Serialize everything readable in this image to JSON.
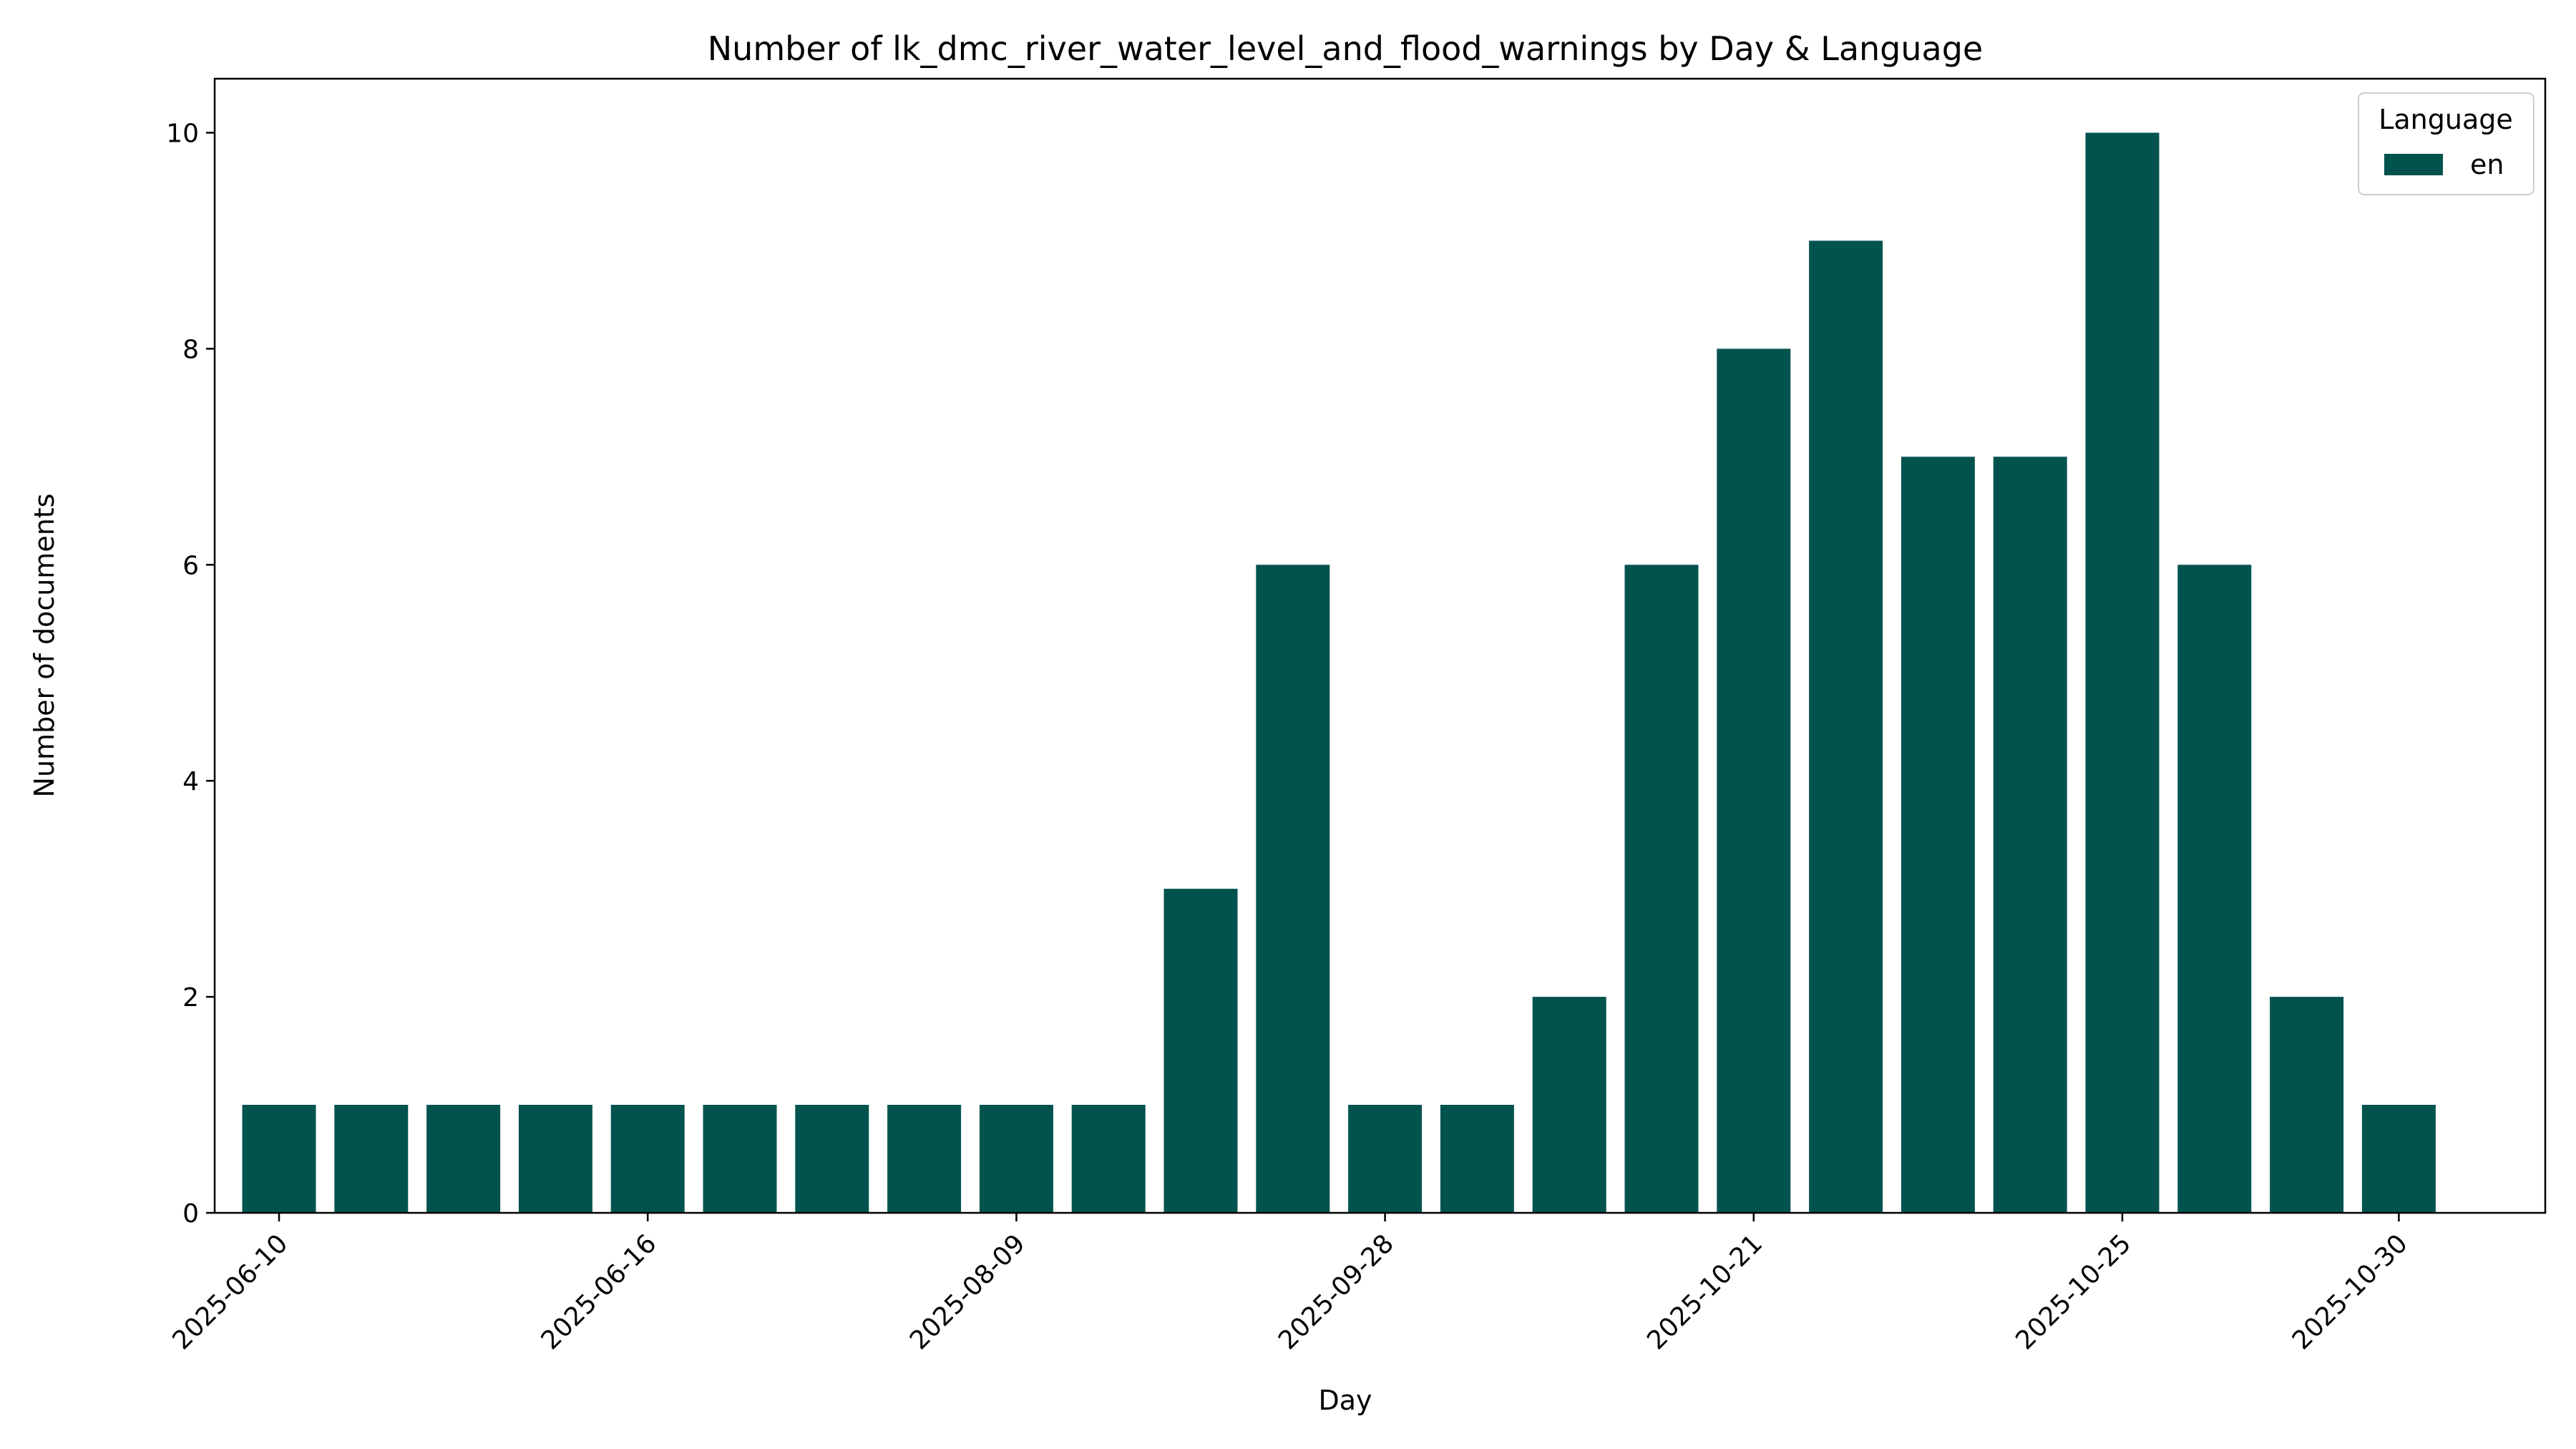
{
  "chart_data": {
    "type": "bar",
    "title": "Number of lk_dmc_river_water_level_and_flood_warnings by Day & Language",
    "xlabel": "Day",
    "ylabel": "Number of documents",
    "ylim": [
      0,
      10.5
    ],
    "yticks": [
      0,
      2,
      4,
      6,
      8,
      10
    ],
    "grid": false,
    "legend": {
      "title": "Language",
      "placement": "top-right"
    },
    "series": [
      {
        "name": "en",
        "color": "#02534e",
        "values": [
          1,
          1,
          1,
          1,
          1,
          1,
          1,
          1,
          1,
          1,
          3,
          6,
          1,
          1,
          2,
          6,
          8,
          9,
          7,
          7,
          10,
          6,
          2,
          1
        ]
      }
    ],
    "xticks": [
      {
        "label": "2025-06-10",
        "position": 0
      },
      {
        "label": "2025-06-16",
        "position": 4
      },
      {
        "label": "2025-08-09",
        "position": 8
      },
      {
        "label": "2025-09-28",
        "position": 12
      },
      {
        "label": "2025-10-21",
        "position": 16
      },
      {
        "label": "2025-10-25",
        "position": 20
      },
      {
        "label": "2025-10-30",
        "position": 23
      }
    ]
  }
}
